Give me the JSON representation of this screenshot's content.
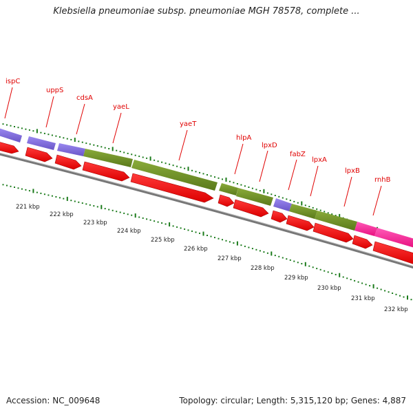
{
  "title": "Klebsiella pneumoniae subsp. pneumoniae MGH 78578, complete ...",
  "footer": {
    "accession": "Accession: NC_009648",
    "summary": "Topology: circular; Length: 5,315,120 bp; Genes: 4,887"
  },
  "colors": {
    "cds_arrow": "#ff0000",
    "cds_arrow_edge": "#cc0000",
    "feature_purple": "#7b66d8",
    "feature_olive": "#6b8e23",
    "feature_magenta": "#ff1493",
    "tick_green": "#1a7a1a",
    "backbone": "#888888",
    "label_red": "#e00000"
  },
  "genes": [
    "ispC",
    "uppS",
    "cdsA",
    "yaeL",
    "yaeT",
    "hlpA",
    "lpxD",
    "fabZ",
    "lpxA",
    "lpxB",
    "rnhB"
  ],
  "ticks": [
    "221 kbp",
    "222 kbp",
    "223 kbp",
    "224 kbp",
    "225 kbp",
    "226 kbp",
    "227 kbp",
    "228 kbp",
    "229 kbp",
    "230 kbp",
    "231 kbp",
    "232 kbp"
  ]
}
